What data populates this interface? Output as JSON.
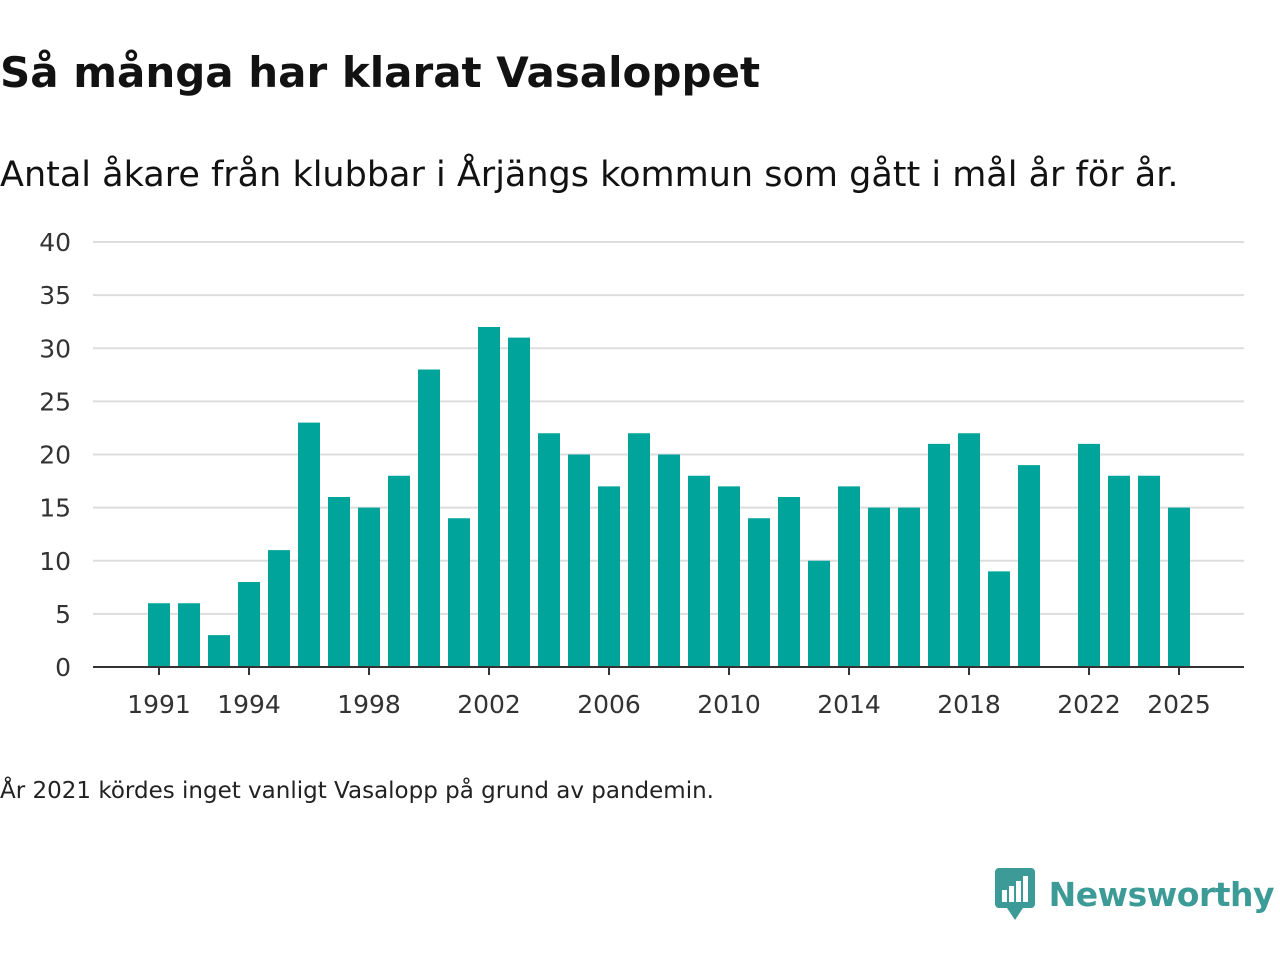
{
  "title": "Så många har klarat Vasaloppet",
  "subtitle": "Antal åkare från klubbar i Årjängs kommun som gått i mål år för år.",
  "footnote": "År 2021 kördes inget vanligt Vasalopp på grund av pandemin.",
  "brand": {
    "name": "Newsworthy",
    "icon": "newsworthy-logo-icon",
    "color": "#3c9b96"
  },
  "colors": {
    "bar": "#00a49b",
    "grid": "#dddddd",
    "axis": "#333333"
  },
  "chart_data": {
    "type": "bar",
    "title": "Så många har klarat Vasaloppet",
    "xlabel": "",
    "ylabel": "",
    "ylim": [
      0,
      40
    ],
    "yticks": [
      0,
      5,
      10,
      15,
      20,
      25,
      30,
      35,
      40
    ],
    "grid": true,
    "categories": [
      1991,
      1992,
      1993,
      1994,
      1995,
      1996,
      1997,
      1998,
      1999,
      2000,
      2001,
      2002,
      2003,
      2004,
      2005,
      2006,
      2007,
      2008,
      2009,
      2010,
      2011,
      2012,
      2013,
      2014,
      2015,
      2016,
      2017,
      2018,
      2019,
      2020,
      2021,
      2022,
      2023,
      2024,
      2025
    ],
    "values": [
      6,
      6,
      3,
      8,
      11,
      23,
      16,
      15,
      18,
      28,
      14,
      32,
      31,
      22,
      20,
      17,
      22,
      20,
      18,
      17,
      14,
      16,
      10,
      17,
      15,
      15,
      21,
      22,
      9,
      19,
      null,
      21,
      18,
      18,
      15
    ],
    "xtick_labels": [
      1991,
      1994,
      1998,
      2002,
      2006,
      2010,
      2014,
      2018,
      2022,
      2025
    ]
  }
}
